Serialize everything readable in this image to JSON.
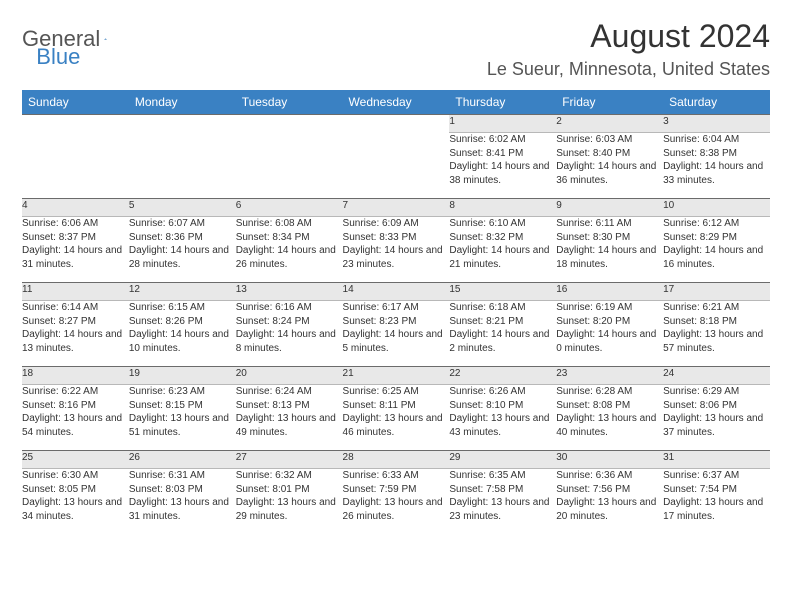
{
  "logo": {
    "general": "General",
    "blue": "Blue"
  },
  "title": "August 2024",
  "location": "Le Sueur, Minnesota, United States",
  "colors": {
    "header_bg": "#3a81c3",
    "header_text": "#ffffff",
    "daynum_bg": "#e8e8e8",
    "border_top": "#6b6b6b",
    "text": "#333333"
  },
  "weekdays": [
    "Sunday",
    "Monday",
    "Tuesday",
    "Wednesday",
    "Thursday",
    "Friday",
    "Saturday"
  ],
  "weeks": [
    [
      null,
      null,
      null,
      null,
      {
        "n": "1",
        "sr": "6:02 AM",
        "ss": "8:41 PM",
        "dl": "14 hours and 38 minutes."
      },
      {
        "n": "2",
        "sr": "6:03 AM",
        "ss": "8:40 PM",
        "dl": "14 hours and 36 minutes."
      },
      {
        "n": "3",
        "sr": "6:04 AM",
        "ss": "8:38 PM",
        "dl": "14 hours and 33 minutes."
      }
    ],
    [
      {
        "n": "4",
        "sr": "6:06 AM",
        "ss": "8:37 PM",
        "dl": "14 hours and 31 minutes."
      },
      {
        "n": "5",
        "sr": "6:07 AM",
        "ss": "8:36 PM",
        "dl": "14 hours and 28 minutes."
      },
      {
        "n": "6",
        "sr": "6:08 AM",
        "ss": "8:34 PM",
        "dl": "14 hours and 26 minutes."
      },
      {
        "n": "7",
        "sr": "6:09 AM",
        "ss": "8:33 PM",
        "dl": "14 hours and 23 minutes."
      },
      {
        "n": "8",
        "sr": "6:10 AM",
        "ss": "8:32 PM",
        "dl": "14 hours and 21 minutes."
      },
      {
        "n": "9",
        "sr": "6:11 AM",
        "ss": "8:30 PM",
        "dl": "14 hours and 18 minutes."
      },
      {
        "n": "10",
        "sr": "6:12 AM",
        "ss": "8:29 PM",
        "dl": "14 hours and 16 minutes."
      }
    ],
    [
      {
        "n": "11",
        "sr": "6:14 AM",
        "ss": "8:27 PM",
        "dl": "14 hours and 13 minutes."
      },
      {
        "n": "12",
        "sr": "6:15 AM",
        "ss": "8:26 PM",
        "dl": "14 hours and 10 minutes."
      },
      {
        "n": "13",
        "sr": "6:16 AM",
        "ss": "8:24 PM",
        "dl": "14 hours and 8 minutes."
      },
      {
        "n": "14",
        "sr": "6:17 AM",
        "ss": "8:23 PM",
        "dl": "14 hours and 5 minutes."
      },
      {
        "n": "15",
        "sr": "6:18 AM",
        "ss": "8:21 PM",
        "dl": "14 hours and 2 minutes."
      },
      {
        "n": "16",
        "sr": "6:19 AM",
        "ss": "8:20 PM",
        "dl": "14 hours and 0 minutes."
      },
      {
        "n": "17",
        "sr": "6:21 AM",
        "ss": "8:18 PM",
        "dl": "13 hours and 57 minutes."
      }
    ],
    [
      {
        "n": "18",
        "sr": "6:22 AM",
        "ss": "8:16 PM",
        "dl": "13 hours and 54 minutes."
      },
      {
        "n": "19",
        "sr": "6:23 AM",
        "ss": "8:15 PM",
        "dl": "13 hours and 51 minutes."
      },
      {
        "n": "20",
        "sr": "6:24 AM",
        "ss": "8:13 PM",
        "dl": "13 hours and 49 minutes."
      },
      {
        "n": "21",
        "sr": "6:25 AM",
        "ss": "8:11 PM",
        "dl": "13 hours and 46 minutes."
      },
      {
        "n": "22",
        "sr": "6:26 AM",
        "ss": "8:10 PM",
        "dl": "13 hours and 43 minutes."
      },
      {
        "n": "23",
        "sr": "6:28 AM",
        "ss": "8:08 PM",
        "dl": "13 hours and 40 minutes."
      },
      {
        "n": "24",
        "sr": "6:29 AM",
        "ss": "8:06 PM",
        "dl": "13 hours and 37 minutes."
      }
    ],
    [
      {
        "n": "25",
        "sr": "6:30 AM",
        "ss": "8:05 PM",
        "dl": "13 hours and 34 minutes."
      },
      {
        "n": "26",
        "sr": "6:31 AM",
        "ss": "8:03 PM",
        "dl": "13 hours and 31 minutes."
      },
      {
        "n": "27",
        "sr": "6:32 AM",
        "ss": "8:01 PM",
        "dl": "13 hours and 29 minutes."
      },
      {
        "n": "28",
        "sr": "6:33 AM",
        "ss": "7:59 PM",
        "dl": "13 hours and 26 minutes."
      },
      {
        "n": "29",
        "sr": "6:35 AM",
        "ss": "7:58 PM",
        "dl": "13 hours and 23 minutes."
      },
      {
        "n": "30",
        "sr": "6:36 AM",
        "ss": "7:56 PM",
        "dl": "13 hours and 20 minutes."
      },
      {
        "n": "31",
        "sr": "6:37 AM",
        "ss": "7:54 PM",
        "dl": "13 hours and 17 minutes."
      }
    ]
  ],
  "labels": {
    "sunrise": "Sunrise: ",
    "sunset": "Sunset: ",
    "daylight": "Daylight: "
  }
}
